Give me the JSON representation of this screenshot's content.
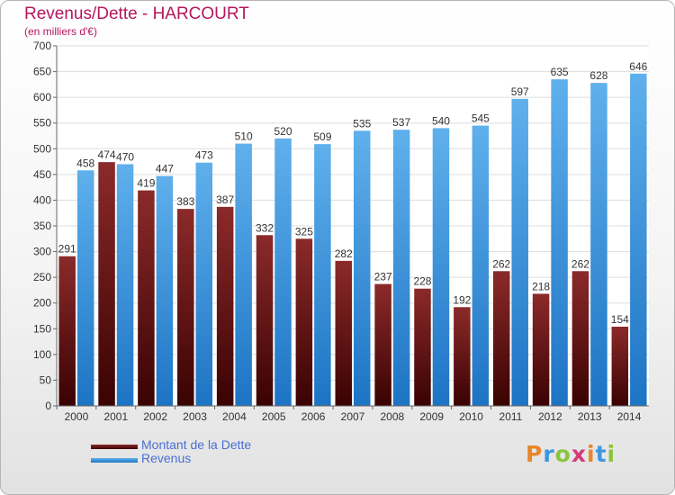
{
  "header": {
    "title": "Revenus/Dette - HARCOURT",
    "subtitle": "(en milliers d'€)"
  },
  "colors": {
    "title": "#b5175e",
    "debt": "#6e1a1a",
    "revenue": "#3d97e0",
    "legend_text": "#4a6fd4"
  },
  "chart_data": {
    "type": "bar",
    "categories": [
      "2000",
      "2001",
      "2002",
      "2003",
      "2004",
      "2005",
      "2006",
      "2007",
      "2008",
      "2009",
      "2010",
      "2011",
      "2012",
      "2013",
      "2014"
    ],
    "series": [
      {
        "name": "Montant de la Dette",
        "values": [
          291,
          474,
          419,
          383,
          387,
          332,
          325,
          282,
          237,
          228,
          192,
          262,
          218,
          262,
          154
        ]
      },
      {
        "name": "Revenus",
        "values": [
          458,
          470,
          447,
          473,
          510,
          520,
          509,
          535,
          537,
          540,
          545,
          597,
          635,
          628,
          646
        ]
      }
    ],
    "y_ticks": [
      "0",
      "50",
      "100",
      "150",
      "200",
      "250",
      "300",
      "350",
      "400",
      "450",
      "500",
      "550",
      "600",
      "650",
      "700"
    ],
    "ylim": [
      0,
      700
    ],
    "grid": true,
    "legend_position": "bottom-left"
  },
  "legend": {
    "debt_label": "Montant de la Dette",
    "revenue_label": "Revenus"
  },
  "logo": {
    "text": "Proxiti",
    "letter_colors": [
      "#e8862a",
      "#3d97e0",
      "#8ac43f",
      "#d63a7a",
      "#e8862a",
      "#3d97e0",
      "#8ac43f"
    ]
  }
}
